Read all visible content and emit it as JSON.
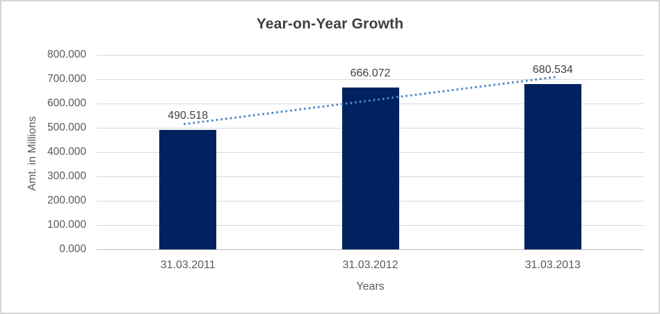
{
  "chart": {
    "colors": {
      "bar": "#00235F",
      "trendline": "#4E87C8",
      "gridline": "#D9D9D9",
      "axis_line": "#BFBFBF",
      "title_text": "#3F3F3F",
      "tick_text": "#595959",
      "data_label_text": "#404040",
      "frame_border": "#D4D4D4",
      "background": "#FFFFFF"
    }
  },
  "chart_data": {
    "type": "bar",
    "title": "Year-on-Year Growth",
    "xlabel": "Years",
    "ylabel": "Amt. in Millions",
    "categories": [
      "31.03.2011",
      "31.03.2012",
      "31.03.2013"
    ],
    "values": [
      490.518,
      666.072,
      680.534
    ],
    "data_labels": [
      "490.518",
      "666.072",
      "680.534"
    ],
    "ylim": [
      0,
      800
    ],
    "ytick_step": 100,
    "ytick_labels": [
      "0.000",
      "100.000",
      "200.000",
      "300.000",
      "400.000",
      "500.000",
      "600.000",
      "700.000",
      "800.000"
    ],
    "grid": true,
    "legend": "none",
    "trendline": {
      "type": "linear",
      "style": "dotted"
    }
  }
}
